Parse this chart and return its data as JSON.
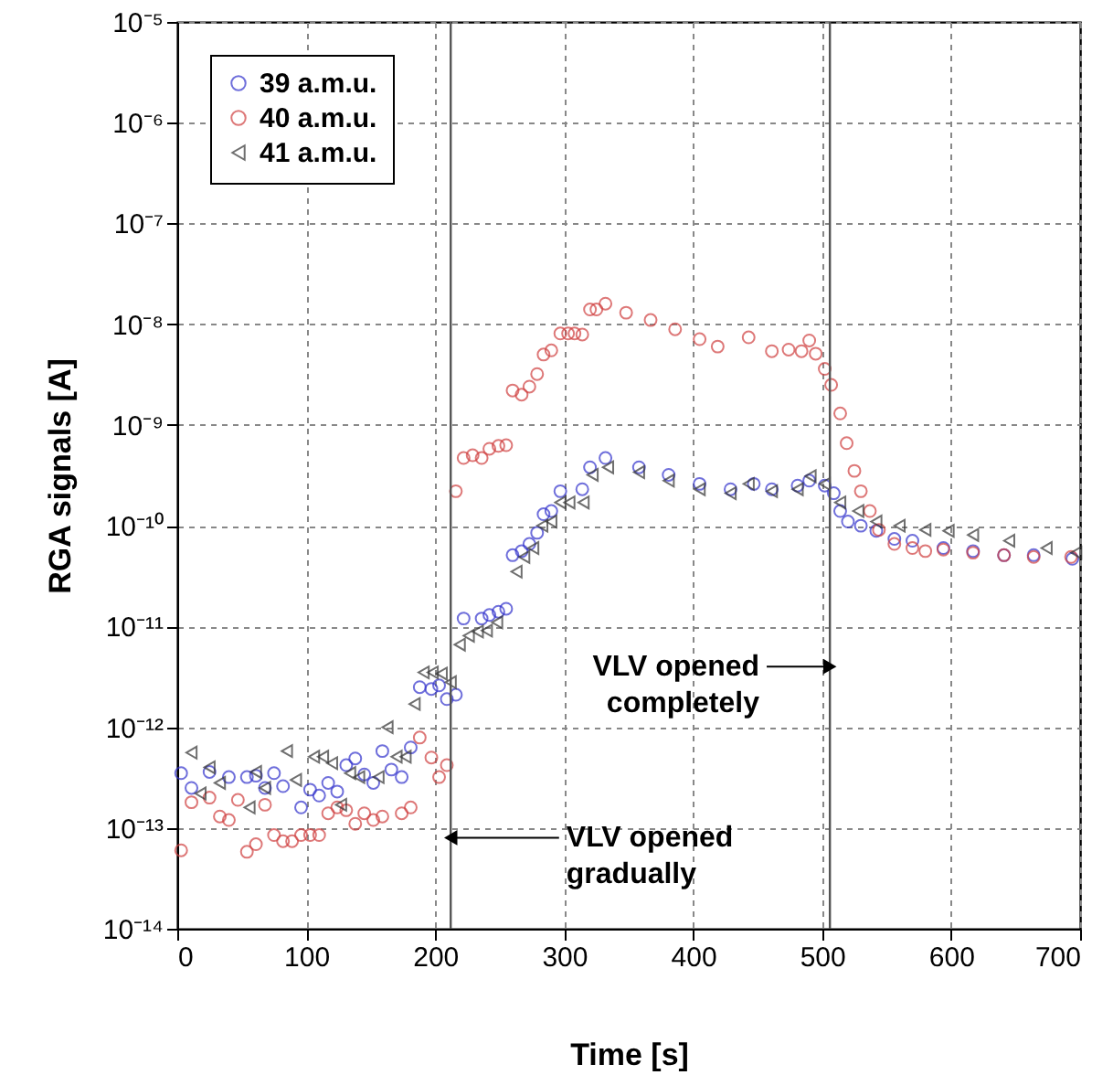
{
  "chart_data": {
    "type": "scatter",
    "xlabel": "Time [s]",
    "ylabel": "RGA signals [A]",
    "xlim": [
      0,
      700
    ],
    "xticks": [
      0,
      100,
      200,
      300,
      400,
      500,
      600,
      700
    ],
    "ylim": [
      1e-14,
      1e-05
    ],
    "log": true,
    "yticks": [
      {
        "value": 1e-14,
        "label": "10⁻¹⁴"
      },
      {
        "value": 1e-13,
        "label": "10⁻¹³"
      },
      {
        "value": 1e-12,
        "label": "10⁻¹²"
      },
      {
        "value": 1e-11,
        "label": "10⁻¹¹"
      },
      {
        "value": 1e-10,
        "label": "10⁻¹⁰"
      },
      {
        "value": 1e-09,
        "label": "10⁻⁹"
      },
      {
        "value": 1e-08,
        "label": "10⁻⁸"
      },
      {
        "value": 1e-07,
        "label": "10⁻⁷"
      },
      {
        "value": 1e-06,
        "label": "10⁻⁶"
      },
      {
        "value": 1e-05,
        "label": "10⁻⁵"
      }
    ],
    "grid": true,
    "legend": "top left",
    "series": [
      {
        "name": "39 a.m.u.",
        "color": "#3333cc",
        "marker": "circle",
        "x": [
          3,
          11,
          25,
          40,
          54,
          61,
          68,
          75,
          82,
          96,
          103,
          110,
          117,
          124,
          131,
          138,
          145,
          152,
          159,
          166,
          174,
          181,
          188,
          197,
          203,
          209,
          216,
          222,
          236,
          242,
          249,
          255,
          260,
          267,
          273,
          279,
          284,
          290,
          297,
          314,
          320,
          332,
          358,
          381,
          405,
          429,
          447,
          461,
          481,
          490,
          502,
          509,
          514,
          520,
          530,
          542,
          556,
          570,
          594,
          617,
          641,
          664,
          694
        ],
        "values": [
          3.5e-13,
          2.5e-13,
          3.6e-13,
          3.2e-13,
          3.2e-13,
          3.3e-13,
          2.5e-13,
          3.5e-13,
          2.6e-13,
          1.6e-13,
          2.4e-13,
          2.1e-13,
          2.8e-13,
          2.3e-13,
          4.2e-13,
          4.9e-13,
          3.4e-13,
          2.8e-13,
          5.8e-13,
          3.8e-13,
          3.2e-13,
          6.3e-13,
          2.5e-12,
          2.4e-12,
          2.6e-12,
          1.9e-12,
          2.1e-12,
          1.2e-11,
          1.2e-11,
          1.3e-11,
          1.4e-11,
          1.5e-11,
          5.1e-11,
          5.6e-11,
          6.6e-11,
          8.5e-11,
          1.3e-10,
          1.4e-10,
          2.2e-10,
          2.3e-10,
          3.8e-10,
          4.7e-10,
          3.8e-10,
          3.2e-10,
          2.6e-10,
          2.3e-10,
          2.6e-10,
          2.3e-10,
          2.5e-10,
          2.8e-10,
          2.5e-10,
          2.1e-10,
          1.4e-10,
          1.1e-10,
          1e-10,
          8.9e-11,
          7.4e-11,
          7.1e-11,
          6e-11,
          5.6e-11,
          5.1e-11,
          5.1e-11,
          4.7e-11
        ]
      },
      {
        "name": "40 a.m.u.",
        "color": "#d04040",
        "marker": "circle",
        "x": [
          3,
          11,
          25,
          33,
          40,
          47,
          54,
          61,
          68,
          75,
          82,
          89,
          96,
          103,
          110,
          117,
          124,
          131,
          138,
          145,
          152,
          159,
          174,
          181,
          188,
          197,
          203,
          209,
          216,
          222,
          229,
          236,
          242,
          249,
          255,
          260,
          267,
          273,
          279,
          284,
          290,
          297,
          303,
          308,
          314,
          320,
          325,
          332,
          348,
          367,
          386,
          405,
          419,
          443,
          461,
          474,
          484,
          490,
          495,
          502,
          507,
          514,
          519,
          525,
          530,
          537,
          544,
          556,
          570,
          580,
          594,
          617,
          641,
          664,
          693
        ],
        "values": [
          6e-14,
          1.8e-13,
          2e-13,
          1.3e-13,
          1.2e-13,
          1.9e-13,
          5.8e-14,
          6.9e-14,
          1.7e-13,
          8.5e-14,
          7.4e-14,
          7.4e-14,
          8.5e-14,
          8.5e-14,
          8.5e-14,
          1.4e-13,
          1.6e-13,
          1.5e-13,
          1.1e-13,
          1.4e-13,
          1.2e-13,
          1.3e-13,
          1.4e-13,
          1.6e-13,
          7.9e-13,
          5e-13,
          3.2e-13,
          4.2e-13,
          2.2e-10,
          4.7e-10,
          5e-10,
          4.7e-10,
          5.8e-10,
          6.2e-10,
          6.3e-10,
          2.2e-09,
          2e-09,
          2.4e-09,
          3.2e-09,
          5e-09,
          5.5e-09,
          8.1e-09,
          8.1e-09,
          8.1e-09,
          7.9e-09,
          1.4e-08,
          1.4e-08,
          1.6e-08,
          1.3e-08,
          1.1e-08,
          8.9e-09,
          7.1e-09,
          6e-09,
          7.4e-09,
          5.4e-09,
          5.6e-09,
          5.4e-09,
          6.9e-09,
          5.1e-09,
          3.6e-09,
          2.5e-09,
          1.3e-09,
          6.6e-10,
          3.5e-10,
          2.2e-10,
          1.4e-10,
          9.1e-11,
          6.6e-11,
          6e-11,
          5.6e-11,
          5.8e-11,
          5.4e-11,
          5.1e-11,
          4.9e-11,
          4.9e-11
        ]
      },
      {
        "name": "41 a.m.u.",
        "color": "#333333",
        "marker": "triangle",
        "x": [
          11,
          18,
          25,
          33,
          56,
          61,
          68,
          85,
          92,
          106,
          113,
          120,
          127,
          134,
          141,
          156,
          163,
          170,
          177,
          184,
          191,
          198,
          205,
          212,
          219,
          226,
          233,
          240,
          248,
          263,
          269,
          276,
          283,
          290,
          297,
          304,
          315,
          322,
          334,
          358,
          381,
          405,
          429,
          443,
          461,
          481,
          491,
          502,
          514,
          528,
          542,
          560,
          580,
          598,
          617,
          645,
          674,
          697
        ],
        "values": [
          5.6e-13,
          2.2e-13,
          4e-13,
          2.8e-13,
          1.6e-13,
          3.6e-13,
          2.5e-13,
          5.8e-13,
          3e-13,
          5.1e-13,
          5.1e-13,
          4.4e-13,
          1.7e-13,
          3.5e-13,
          3.2e-13,
          3.2e-13,
          1e-12,
          5.1e-13,
          5.1e-13,
          1.7e-12,
          3.5e-12,
          3.5e-12,
          3.4e-12,
          2.8e-12,
          6.6e-12,
          8.1e-12,
          8.9e-12,
          9.1e-12,
          1.1e-11,
          3.5e-11,
          4.9e-11,
          6e-11,
          1e-10,
          1.1e-10,
          1.7e-10,
          1.7e-10,
          1.7e-10,
          3.2e-10,
          3.8e-10,
          3.4e-10,
          2.8e-10,
          2.3e-10,
          2.1e-10,
          2.6e-10,
          2.2e-10,
          2.3e-10,
          3.1e-10,
          2.6e-10,
          1.7e-10,
          1.4e-10,
          1.1e-10,
          1e-10,
          9.1e-11,
          8.9e-11,
          8.1e-11,
          7.1e-11,
          6e-11,
          5.4e-11
        ]
      }
    ],
    "ref_lines": [
      {
        "axis": "x",
        "value": 212,
        "color": "#555555"
      },
      {
        "axis": "x",
        "value": 506,
        "color": "#555555"
      }
    ],
    "annotations": [
      {
        "text": "VLV opened\ncompletely",
        "x": 506,
        "y": 4e-12
      },
      {
        "text": "VLV opened\ngradually",
        "x": 212,
        "y": 8e-14
      }
    ]
  }
}
